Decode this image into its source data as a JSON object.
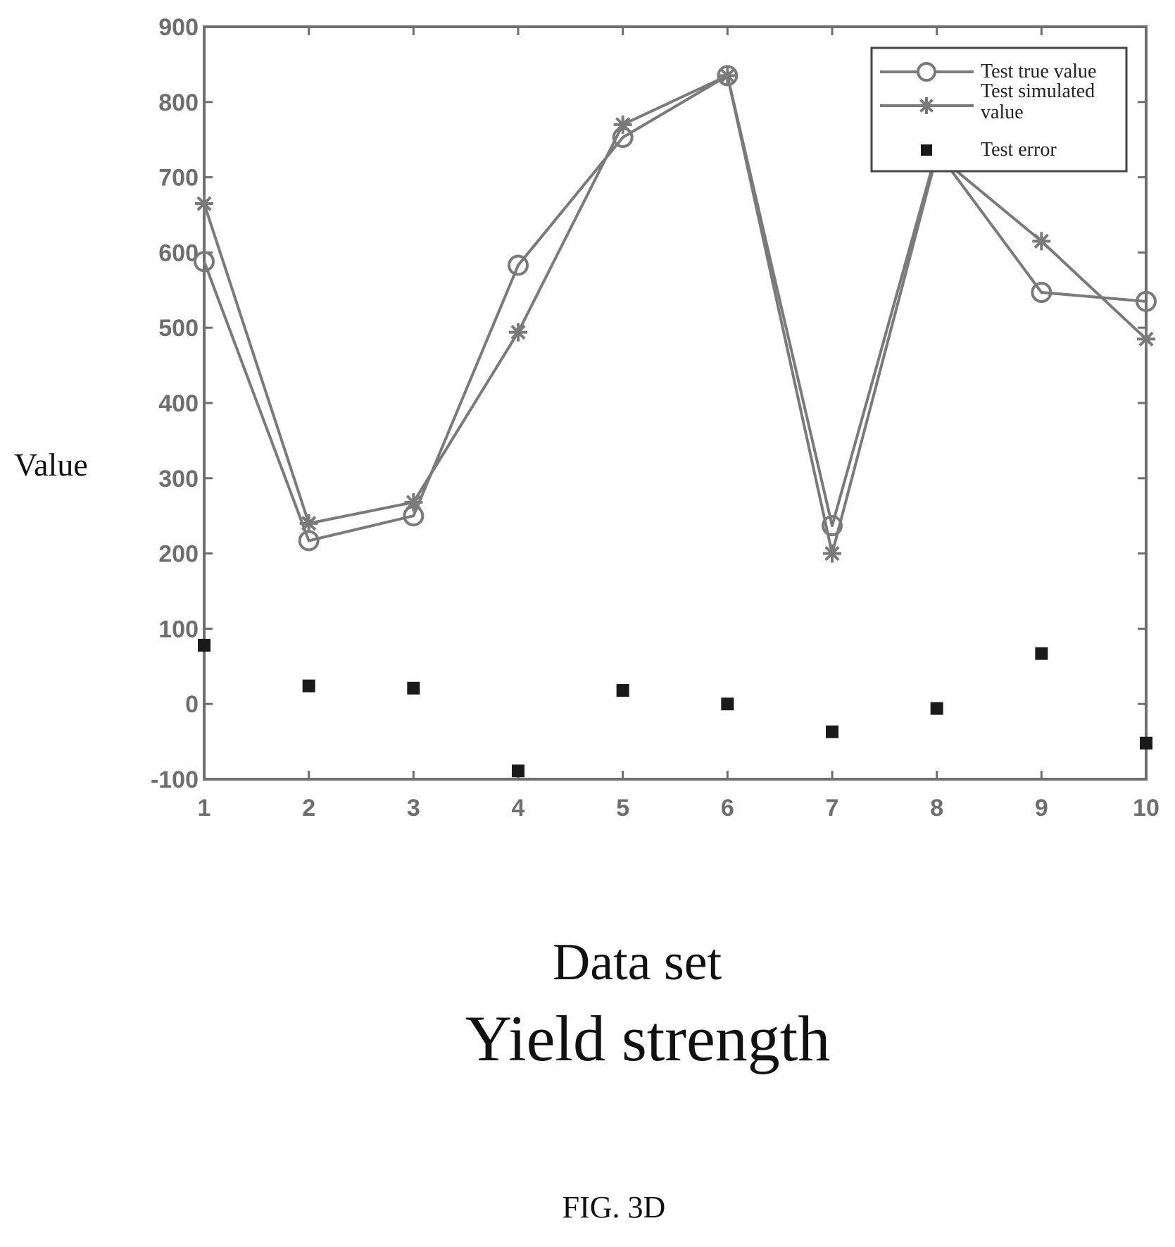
{
  "chart_data": {
    "type": "line",
    "title": "Yield strength",
    "xlabel": "Data set",
    "ylabel": "Value",
    "categories": [
      1,
      2,
      3,
      4,
      5,
      6,
      7,
      8,
      9,
      10
    ],
    "xlim": [
      1,
      10
    ],
    "ylim": [
      -100,
      900
    ],
    "xticks": [
      "1",
      "2",
      "3",
      "4",
      "5",
      "6",
      "7",
      "8",
      "9",
      "10"
    ],
    "yticks": [
      "-100",
      "0",
      "100",
      "200",
      "300",
      "400",
      "500",
      "600",
      "700",
      "800",
      "900"
    ],
    "grid": false,
    "legend_position": "top-right",
    "series": [
      {
        "name": "Test true value",
        "marker": "circle",
        "line": true,
        "values": [
          588,
          217,
          250,
          583,
          753,
          835,
          237,
          735,
          547,
          535
        ]
      },
      {
        "name": "Test simulated value",
        "marker": "star",
        "line": true,
        "values": [
          665,
          240,
          268,
          494,
          770,
          835,
          200,
          730,
          615,
          485
        ]
      },
      {
        "name": "Test error",
        "marker": "square",
        "line": false,
        "values": [
          78,
          24,
          21,
          -89,
          18,
          0,
          -37,
          -6,
          67,
          -52
        ]
      }
    ],
    "colors": {
      "lines": "#7a7a7a",
      "error_marker": "#1a1a1a",
      "axes": "#6e6e6e"
    }
  },
  "figure_label": "FIG. 3D"
}
